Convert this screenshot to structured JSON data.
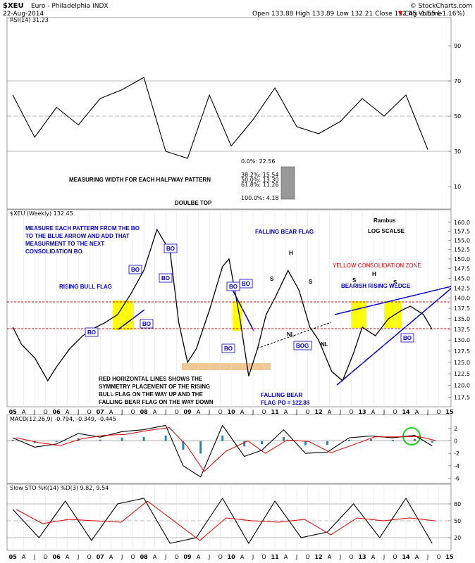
{
  "header": {
    "symbol": "$XEU",
    "name": "Euro - Philadelphia INDX",
    "date": "22-Aug-2014",
    "source": "© StockCharts.com",
    "ohlc": "Open 133.88  High 133.89  Low 132.21  Close 132.45  Volume",
    "change": "Chg -1.55 (-1.16%)",
    "change_icon": "down-triangle-icon"
  },
  "colors": {
    "price": "#000000",
    "annotation_blue": "#0000cc",
    "red_line": "#dd0000",
    "yellow_zone": "#ffff00",
    "tan_zone": "#f0c896",
    "macd_hist": "#2e86ab",
    "macd_signal": "#dd0000",
    "circle": "#22cc22"
  },
  "chart_data": [
    {
      "type": "line",
      "panel": "rsi",
      "legend": "RSI(14) 31.23",
      "ylim": [
        0,
        100
      ],
      "y_ticks": [
        "90",
        "70",
        "50",
        "30",
        "10"
      ],
      "reference_lines": [
        70,
        50,
        30
      ],
      "fib_labels": [
        "0.0%: 22.56",
        "38.2%: 15.54",
        "50.0%: 13.30",
        "61.8%: 11.26",
        "100.0%: 4.18"
      ],
      "x": [
        2005.0,
        2005.5,
        2006.0,
        2006.5,
        2007.0,
        2007.5,
        2008.0,
        2008.5,
        2009.0,
        2009.5,
        2010.0,
        2010.5,
        2011.0,
        2011.5,
        2012.0,
        2012.5,
        2013.0,
        2013.5,
        2014.0,
        2014.5
      ],
      "values": [
        62,
        38,
        55,
        45,
        60,
        65,
        72,
        30,
        26,
        62,
        33,
        48,
        66,
        44,
        40,
        47,
        60,
        50,
        62,
        31
      ]
    },
    {
      "type": "line",
      "panel": "price",
      "legend": "$XEU (Weekly) 132.45",
      "scale": "log",
      "ylim": [
        116,
        162
      ],
      "y_ticks": [
        "160.0",
        "157.5",
        "155.0",
        "152.5",
        "150.0",
        "147.5",
        "145.0",
        "142.5",
        "140.0",
        "137.5",
        "135.0",
        "132.5",
        "130.0",
        "127.5",
        "125.0",
        "122.5",
        "120.0",
        "117.5"
      ],
      "x": [
        2005.0,
        2005.2,
        2005.5,
        2005.8,
        2006.0,
        2006.3,
        2006.6,
        2006.9,
        2007.1,
        2007.4,
        2007.7,
        2008.0,
        2008.3,
        2008.6,
        2008.8,
        2009.0,
        2009.2,
        2009.5,
        2009.8,
        2009.95,
        2010.2,
        2010.4,
        2010.6,
        2010.8,
        2011.0,
        2011.3,
        2011.55,
        2011.8,
        2012.0,
        2012.3,
        2012.55,
        2012.8,
        2013.0,
        2013.3,
        2013.6,
        2013.9,
        2014.1,
        2014.4,
        2014.6
      ],
      "values": [
        133,
        129,
        126,
        121,
        124,
        128,
        131,
        133,
        134,
        136,
        141,
        147,
        158,
        152,
        134,
        125,
        128,
        137,
        148,
        150,
        135,
        122,
        128,
        136,
        140,
        147,
        142,
        133,
        130,
        123,
        121,
        127,
        133,
        131,
        135,
        137,
        138,
        136,
        132.45
      ],
      "annotations": [
        "MEASURE EACH PATTERN FROM THE BO",
        "TO THE BLUE ARROW AND ADD THAT",
        "MEASURMENT TO THE NEXT",
        "CONSOLIDATION BO",
        "RISING BULL FLAG",
        "DOULBE TOP",
        "FALLING BEAR FLAG",
        "Rambus",
        "LOG SCALSE",
        "YELLOW CONSOLIDATION ZONE",
        "BEARISH RISING WEDGE",
        "RED HORIZONTAL LINES SHOWS THE",
        "SYMMETRY PLACEMENT OF THE RISING",
        "BULL FLAG ON THE WAY UP AND THE",
        "FALLING BEAR FLAG ON THE WAY DOWN",
        "FALLING BEAR",
        "FLAG PO = 122.88",
        "MEASURING WIDTH FOR EACH HALFWAY PATTERN"
      ],
      "pattern_labels": [
        "BO",
        "BO",
        "BO",
        "BO",
        "BO",
        "BO",
        "BO",
        "BO",
        "BOG",
        "BO",
        "S",
        "H",
        "S",
        "S",
        "H",
        "S",
        "NL",
        "NL"
      ]
    },
    {
      "type": "line",
      "panel": "macd",
      "legend": "MACD(12,26,9) -0.794, -0.349, -0.445",
      "ylim": [
        -6.5,
        3
      ],
      "y_ticks": [
        "2",
        "0",
        "-2",
        "-4",
        "-6"
      ],
      "x": [
        2005.0,
        2005.5,
        2006.0,
        2006.5,
        2007.0,
        2007.5,
        2008.0,
        2008.5,
        2008.9,
        2009.3,
        2009.8,
        2010.3,
        2010.7,
        2011.2,
        2011.7,
        2012.2,
        2012.7,
        2013.2,
        2013.7,
        2014.2,
        2014.6
      ],
      "values": [
        0.5,
        -1.0,
        -0.5,
        1.2,
        0.6,
        1.5,
        1.8,
        2.5,
        -4.0,
        -5.8,
        2.5,
        -2.5,
        -1.5,
        1.8,
        -2.0,
        -1.8,
        0.5,
        0.8,
        0.5,
        0.9,
        -0.79
      ]
    },
    {
      "type": "line",
      "panel": "stochastic",
      "legend": "Slow STO %K(14) %D(3) 9.82, 9.54",
      "ylim": [
        0,
        100
      ],
      "y_ticks": [
        "80",
        "50",
        "20"
      ],
      "reference_lines": [
        80,
        50,
        20
      ],
      "x": [
        2005.0,
        2005.6,
        2006.2,
        2006.8,
        2007.4,
        2008.0,
        2008.6,
        2009.2,
        2009.8,
        2010.4,
        2011.0,
        2011.6,
        2012.2,
        2012.8,
        2013.4,
        2014.0,
        2014.6
      ],
      "values": [
        70,
        20,
        85,
        15,
        80,
        90,
        10,
        20,
        90,
        10,
        85,
        20,
        30,
        80,
        20,
        90,
        9.82
      ]
    }
  ],
  "x_axis": {
    "labels": [
      "05",
      "A",
      "J",
      "O",
      "06",
      "A",
      "J",
      "O",
      "07",
      "A",
      "J",
      "O",
      "08",
      "A",
      "J",
      "O",
      "09",
      "A",
      "J",
      "O",
      "10",
      "A",
      "J",
      "O",
      "11",
      "A",
      "J",
      "O",
      "12",
      "A",
      "J",
      "O",
      "13",
      "A",
      "J",
      "O",
      "14",
      "A",
      "J",
      "O",
      "15"
    ]
  }
}
